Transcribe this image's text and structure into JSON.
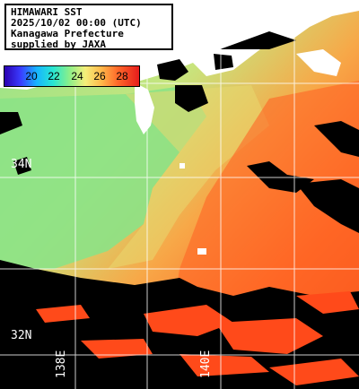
{
  "title": {
    "line1": "HIMAWARI SST",
    "line2": "2025/10/02 00:00 (UTC)",
    "line3": "Kanagawa Prefecture",
    "line4": "supplied by JAXA"
  },
  "legend": {
    "labels": [
      "20",
      "22",
      "24",
      "26",
      "28"
    ],
    "colors": [
      "#2a00b0",
      "#3a3cff",
      "#17b5ff",
      "#28e6d2",
      "#8aef8a",
      "#f4ef7a",
      "#ffb84a",
      "#ff6a2a",
      "#e61c1c"
    ]
  },
  "coordinates": {
    "lat_top": "34N",
    "lat_bottom": "32N",
    "lon_left": "138E",
    "lon_right": "140E"
  },
  "colors": {
    "land": "#ffffff",
    "cloud": "#000000",
    "grid": "#ffffff",
    "cool_sea": "#9ee27e",
    "warm_sea": "#ff5a1e"
  }
}
